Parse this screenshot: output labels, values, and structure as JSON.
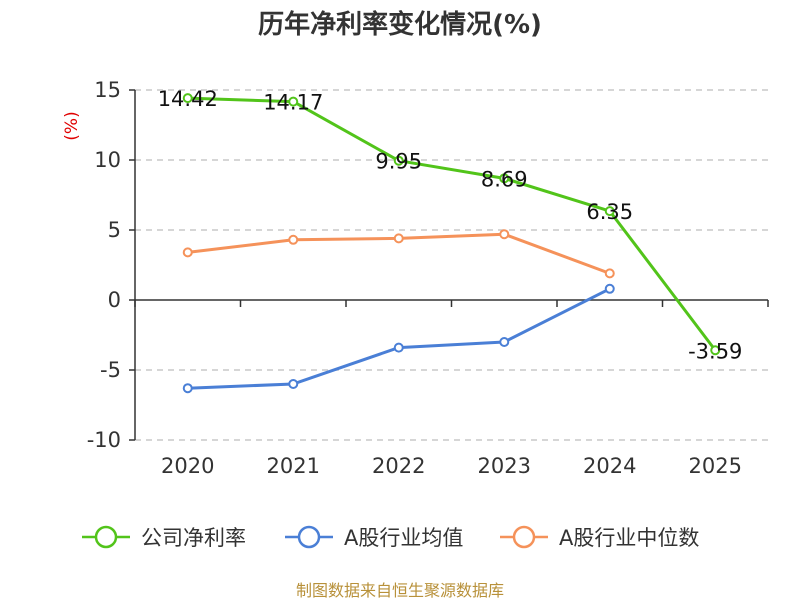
{
  "chart_data": {
    "type": "line",
    "title": "历年净利率变化情况(%)",
    "unit_label": "(%)",
    "categories": [
      "2020",
      "2021",
      "2022",
      "2023",
      "2024",
      "2025"
    ],
    "ylim": [
      -10,
      15
    ],
    "yticks": [
      "15",
      "10",
      "5",
      "0",
      "-5",
      "-10"
    ],
    "grid": true,
    "legend_position": "bottom",
    "series": [
      {
        "name": "公司净利率",
        "color": "#52c41a",
        "values": [
          14.42,
          14.17,
          9.95,
          8.69,
          6.35,
          -3.59
        ],
        "labels": [
          "14.42",
          "14.17",
          "9.95",
          "8.69",
          "6.35",
          "-3.59"
        ]
      },
      {
        "name": "A股行业均值",
        "color": "#4a7fd6",
        "values": [
          -6.3,
          -6.0,
          -3.4,
          -3.0,
          0.8,
          null
        ]
      },
      {
        "name": "A股行业中位数",
        "color": "#f5925a",
        "values": [
          3.4,
          4.3,
          4.4,
          4.7,
          1.9,
          null
        ]
      }
    ],
    "source": "制图数据来自恒生聚源数据库"
  }
}
